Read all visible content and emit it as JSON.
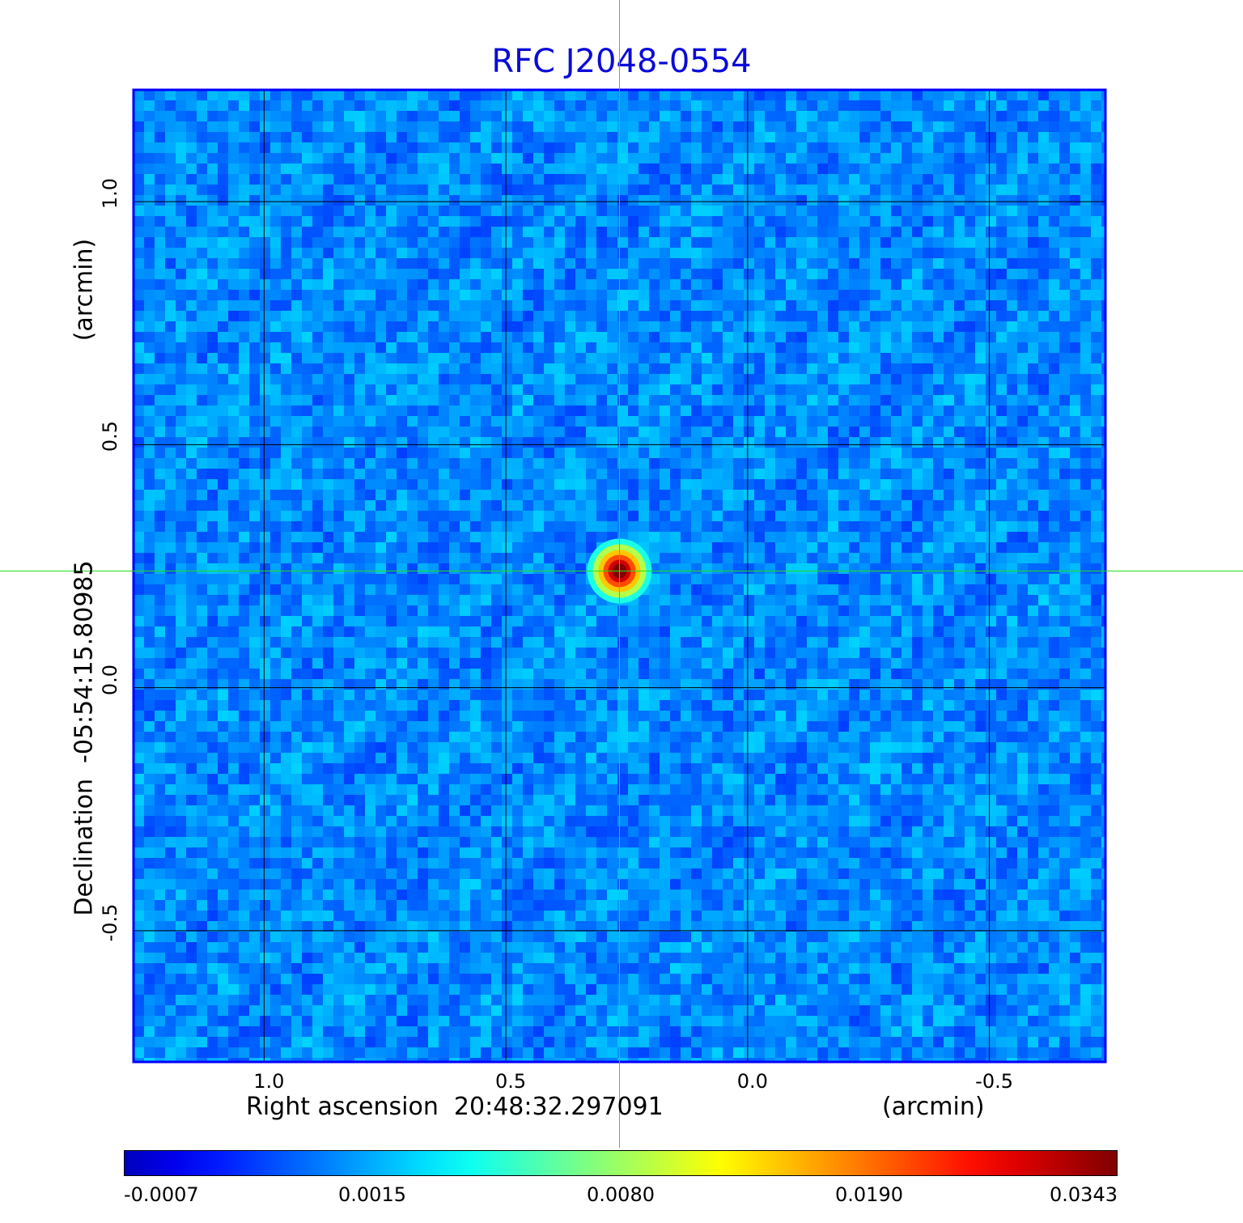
{
  "chart_data": {
    "type": "heatmap",
    "title": "RFC J2048-0554",
    "xlabel": "Right ascension  20:48:32.297091",
    "xunit": "(arcmin)",
    "ylabel": "Declination  -05:54:15.80985",
    "yunit": "(arcmin)",
    "xticks": [
      "1.0",
      "0.5",
      "0.0",
      "-0.5"
    ],
    "yticks": [
      "1.0",
      "0.5",
      "0.0",
      "-0.5"
    ],
    "x_tick_values": [
      1.0,
      0.5,
      0.0,
      -0.5
    ],
    "y_tick_values": [
      1.0,
      0.5,
      0.0,
      -0.5
    ],
    "xlim": [
      1.27,
      -0.74
    ],
    "ylim": [
      -0.77,
      1.23
    ],
    "grid": true,
    "source_peak": {
      "x": 0.265,
      "y": 0.24,
      "value": 0.0343
    },
    "crosshair": {
      "x": 0.265,
      "y": 0.24
    },
    "colormap": "jet",
    "colorbar_ticks": [
      "-0.0007",
      "0.0015",
      "0.0080",
      "0.0190",
      "0.0343"
    ],
    "colorbar_values": [
      -0.0007,
      0.0015,
      0.008,
      0.019,
      0.0343
    ],
    "colors": {
      "title": "#0a0ad8",
      "frame": "#0000ff",
      "background": "#1e50f0",
      "crosshair": "#22dd22",
      "grid": "#000000"
    }
  }
}
